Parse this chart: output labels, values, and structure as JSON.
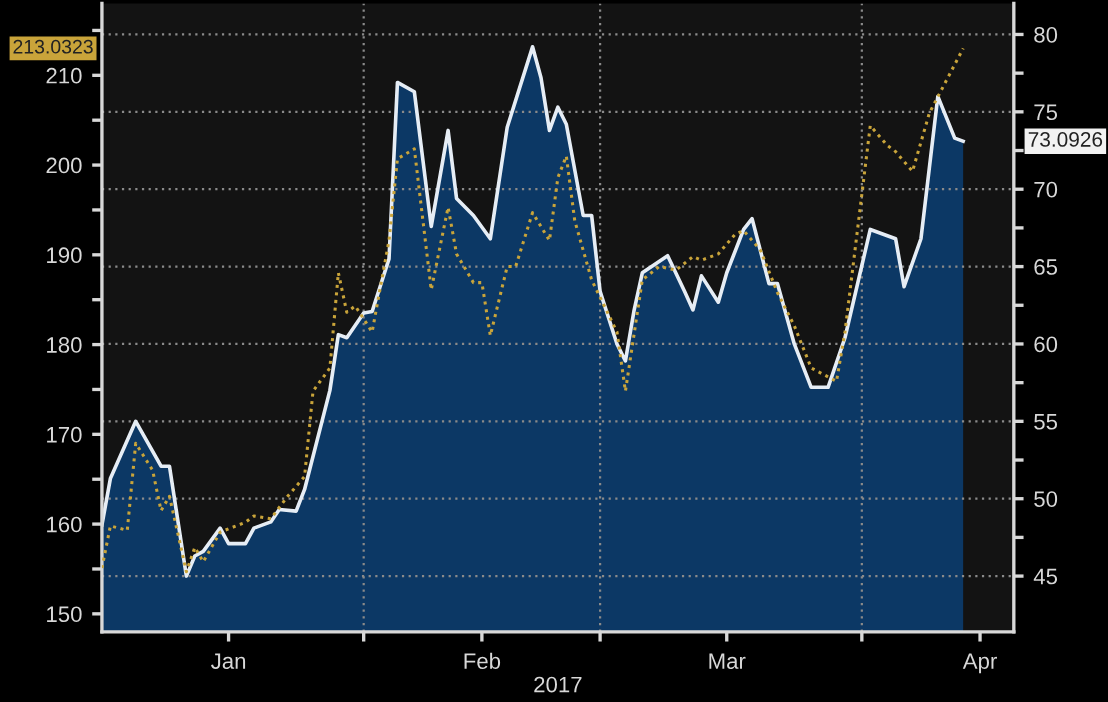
{
  "chart_data": {
    "type": "line",
    "xlabel": "2017",
    "xlim": [
      "2017-01-01",
      "2017-04-19"
    ],
    "xticks": [
      {
        "value": "2017-01-16",
        "label": "Jan"
      },
      {
        "value": "2017-02-01",
        "label": null
      },
      {
        "value": "2017-02-15",
        "label": "Feb"
      },
      {
        "value": "2017-03-01",
        "label": null
      },
      {
        "value": "2017-03-16",
        "label": "Mar"
      },
      {
        "value": "2017-04-01",
        "label": null
      },
      {
        "value": "2017-04-15",
        "label": "Apr"
      }
    ],
    "ylim": [
      148,
      218
    ],
    "yticks": [
      150,
      {
        "value": 155,
        "label": null
      },
      160,
      {
        "value": 165,
        "label": null
      },
      170,
      {
        "value": 175,
        "label": null
      },
      180,
      {
        "value": 185,
        "label": null
      },
      190,
      {
        "value": 195,
        "label": null
      },
      200,
      {
        "value": 205,
        "label": null
      },
      210,
      {
        "value": 215,
        "label": null
      }
    ],
    "y2lim": [
      41.4,
      82
    ],
    "y2ticks": [
      45,
      {
        "value": 47.5,
        "label": null
      },
      50,
      {
        "value": 52.5,
        "label": null
      },
      55,
      {
        "value": 57.5,
        "label": null
      },
      60,
      {
        "value": 62.5,
        "label": null
      },
      65,
      {
        "value": 67.5,
        "label": null
      },
      70,
      {
        "value": 72.5,
        "label": null
      },
      75,
      {
        "value": 77.5,
        "label": null
      },
      80
    ],
    "grid": true,
    "annotations": [
      "73.0926",
      "213.0323"
    ],
    "series": [
      {
        "type": "area",
        "axis": "y2",
        "color": "#0c3865",
        "x": [
          "2017-01-01",
          "2017-01-02",
          "2017-01-05",
          "2017-01-08",
          "2017-01-09",
          "2017-01-11",
          "2017-01-12",
          "2017-01-13",
          "2017-01-15",
          "2017-01-16",
          "2017-01-18",
          "2017-01-19",
          "2017-01-21",
          "2017-01-22",
          "2017-01-24",
          "2017-01-25",
          "2017-01-28",
          "2017-01-29",
          "2017-01-30",
          "2017-02-01",
          "2017-02-02",
          "2017-02-04",
          "2017-02-05",
          "2017-02-07",
          "2017-02-09",
          "2017-02-11",
          "2017-02-12",
          "2017-02-14",
          "2017-02-16",
          "2017-02-18",
          "2017-02-21",
          "2017-02-22",
          "2017-02-23",
          "2017-02-24",
          "2017-02-25",
          "2017-02-27",
          "2017-02-28",
          "2017-03-01",
          "2017-03-03",
          "2017-03-04",
          "2017-03-05",
          "2017-03-06",
          "2017-03-09",
          "2017-03-11",
          "2017-03-12",
          "2017-03-13",
          "2017-03-15",
          "2017-03-16",
          "2017-03-18",
          "2017-03-19",
          "2017-03-21",
          "2017-03-22",
          "2017-03-24",
          "2017-03-26",
          "2017-03-28",
          "2017-03-30",
          "2017-04-02",
          "2017-04-05",
          "2017-04-06",
          "2017-04-08",
          "2017-04-10",
          "2017-04-12",
          "2017-04-13"
        ],
        "values": [
          48.3,
          51.3,
          55.0,
          52.1,
          52.1,
          45.0,
          46.3,
          46.6,
          48.1,
          47.1,
          47.1,
          48.1,
          48.5,
          49.3,
          49.2,
          50.6,
          57.0,
          60.6,
          60.4,
          62.0,
          62.1,
          65.5,
          76.9,
          76.3,
          67.6,
          73.8,
          69.4,
          68.3,
          66.8,
          74.0,
          79.2,
          77.2,
          73.8,
          75.3,
          74.2,
          68.3,
          68.3,
          63.4,
          60.0,
          58.9,
          62.1,
          64.6,
          65.7,
          63.4,
          62.2,
          64.4,
          62.7,
          64.6,
          67.4,
          68.1,
          63.9,
          63.9,
          60.0,
          57.2,
          57.2,
          60.4,
          67.4,
          66.8,
          63.7,
          66.8,
          76.0,
          73.3,
          73.1
        ]
      },
      {
        "axis": "y",
        "color": "#c9a43a",
        "line_style": "dotted",
        "x": [
          "2017-01-01",
          "2017-01-02",
          "2017-01-04",
          "2017-01-05",
          "2017-01-07",
          "2017-01-08",
          "2017-01-09",
          "2017-01-11",
          "2017-01-12",
          "2017-01-13",
          "2017-01-15",
          "2017-01-18",
          "2017-01-19",
          "2017-01-21",
          "2017-01-23",
          "2017-01-25",
          "2017-01-26",
          "2017-01-28",
          "2017-01-29",
          "2017-01-30",
          "2017-01-31",
          "2017-02-02",
          "2017-02-04",
          "2017-02-05",
          "2017-02-07",
          "2017-02-09",
          "2017-02-11",
          "2017-02-12",
          "2017-02-14",
          "2017-02-15",
          "2017-02-16",
          "2017-02-18",
          "2017-02-19",
          "2017-02-21",
          "2017-02-23",
          "2017-02-24",
          "2017-02-25",
          "2017-02-26",
          "2017-02-28",
          "2017-03-03",
          "2017-03-04",
          "2017-03-06",
          "2017-03-08",
          "2017-03-10",
          "2017-03-12",
          "2017-03-13",
          "2017-03-15",
          "2017-03-17",
          "2017-03-18",
          "2017-03-20",
          "2017-03-22",
          "2017-03-24",
          "2017-03-26",
          "2017-03-29",
          "2017-03-30",
          "2017-04-02",
          "2017-04-04",
          "2017-04-05",
          "2017-04-07",
          "2017-04-09",
          "2017-04-13"
        ],
        "values": [
          155.1,
          159.8,
          159.3,
          169.0,
          166.0,
          161.5,
          163.1,
          154.7,
          157.4,
          155.8,
          159.1,
          160.2,
          160.9,
          160.6,
          163.1,
          165.3,
          174.8,
          177.4,
          188.0,
          183.6,
          184.3,
          181.4,
          191.6,
          200.7,
          201.8,
          186.1,
          195.3,
          190.1,
          186.9,
          186.9,
          181.0,
          188.7,
          188.7,
          194.7,
          191.6,
          198.6,
          201.0,
          193.8,
          187.2,
          181.4,
          174.8,
          187.2,
          188.7,
          188.3,
          189.8,
          189.4,
          190.1,
          192.3,
          192.7,
          190.5,
          185.8,
          182.1,
          177.4,
          175.9,
          181.4,
          204.4,
          202.2,
          201.5,
          199.3,
          205.8,
          213.0
        ]
      }
    ]
  }
}
